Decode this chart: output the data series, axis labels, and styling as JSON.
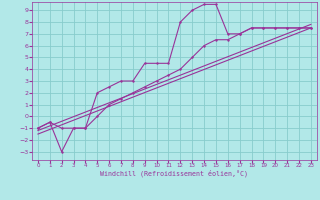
{
  "xlabel": "Windchill (Refroidissement éolien,°C)",
  "bg_color": "#b2e8e8",
  "line_color": "#993399",
  "grid_color": "#88cccc",
  "xlim": [
    -0.5,
    23.5
  ],
  "ylim": [
    -3.7,
    9.7
  ],
  "xticks": [
    0,
    1,
    2,
    3,
    4,
    5,
    6,
    7,
    8,
    9,
    10,
    11,
    12,
    13,
    14,
    15,
    16,
    17,
    18,
    19,
    20,
    21,
    22,
    23
  ],
  "yticks": [
    -3,
    -2,
    -1,
    0,
    1,
    2,
    3,
    4,
    5,
    6,
    7,
    8,
    9
  ],
  "line1_x": [
    0,
    1,
    2,
    3,
    4,
    5,
    6,
    7,
    8,
    9,
    10,
    11,
    12,
    13,
    14,
    15,
    16,
    17,
    18,
    19,
    20,
    21,
    22,
    23
  ],
  "line1_y": [
    -1.0,
    -0.5,
    -3.0,
    -1.0,
    -1.0,
    2.0,
    2.5,
    3.0,
    3.0,
    4.5,
    4.5,
    4.5,
    8.0,
    9.0,
    9.5,
    9.5,
    7.0,
    7.0,
    7.5,
    7.5,
    7.5,
    7.5,
    7.5,
    7.5
  ],
  "line2_x": [
    0,
    1,
    2,
    3,
    4,
    5,
    6,
    7,
    8,
    9,
    10,
    11,
    12,
    13,
    14,
    15,
    16,
    17,
    18,
    19,
    20,
    21,
    22,
    23
  ],
  "line2_y": [
    -1.0,
    -0.5,
    -1.0,
    -1.0,
    -1.0,
    0.0,
    1.0,
    1.5,
    2.0,
    2.5,
    3.0,
    3.5,
    4.0,
    5.0,
    6.0,
    6.5,
    6.5,
    7.0,
    7.5,
    7.5,
    7.5,
    7.5,
    7.5,
    7.5
  ],
  "line3_x": [
    0,
    23
  ],
  "line3_y": [
    -1.5,
    7.5
  ],
  "line4_x": [
    0,
    23
  ],
  "line4_y": [
    -1.2,
    7.8
  ]
}
